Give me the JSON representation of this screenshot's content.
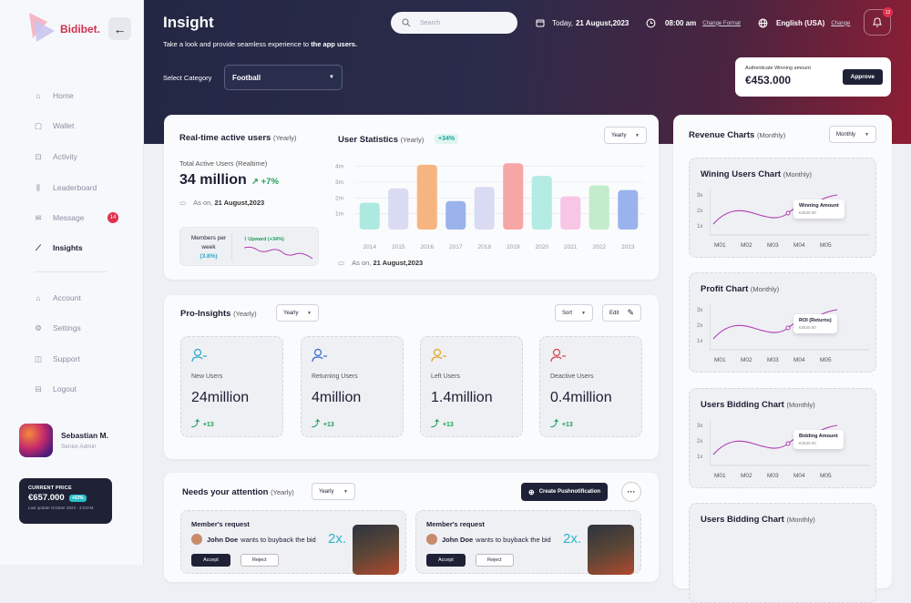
{
  "brand": {
    "name": "Bidibet."
  },
  "sidebar": {
    "items": [
      {
        "label": "Home",
        "icon": "home-icon"
      },
      {
        "label": "Wallet",
        "icon": "wallet-icon"
      },
      {
        "label": "Activity",
        "icon": "activity-icon"
      },
      {
        "label": "Leaderboard",
        "icon": "leaderboard-icon"
      },
      {
        "label": "Message",
        "icon": "message-icon",
        "badge": "14"
      },
      {
        "label": "Insights",
        "icon": "insights-icon",
        "active": true
      },
      {
        "label": "Account",
        "icon": "account-icon"
      },
      {
        "label": "Settings",
        "icon": "settings-icon"
      },
      {
        "label": "Support",
        "icon": "support-icon"
      },
      {
        "label": "Logout",
        "icon": "logout-icon"
      }
    ],
    "user": {
      "name": "Sebastian M.",
      "role": "Senior Admin"
    },
    "price": {
      "label": "CURRENT PRICE",
      "value": "€657.000",
      "change": "+02%",
      "updated": "Last update October 2023 - 3:23AM"
    }
  },
  "header": {
    "title": "Insight",
    "subtitle_pre": "Take a look and provide seamless experience to ",
    "subtitle_bold": "the app users.",
    "category_label": "Select Category",
    "category_value": "Football",
    "search_placeholder": "Search",
    "date_pre": "Today,",
    "date": "21 August,2023",
    "time": "08:00 am",
    "time_link": "Change Format",
    "language": "English (USA)",
    "language_link": "Change",
    "notifications": "12"
  },
  "auth": {
    "label": "Authenticate Winning amount",
    "value": "€453.000",
    "button": "Approve"
  },
  "realtime": {
    "title": "Real-time active users",
    "period": "(Yearly)",
    "total_label": "Total Active Users (Realtime)",
    "total_value": "34 million",
    "change": "+7%",
    "as_on_pre": "As on,",
    "as_on": "21 August,2023",
    "members_label": "Members per week",
    "members_pct": "(3.8%)",
    "trend": "Upward (+34%)"
  },
  "user_stats": {
    "title": "User Statistics",
    "period": "(Yearly)",
    "badge": "+34%",
    "select": "Yearly",
    "as_on_pre": "As on,",
    "as_on": "21 August,2023"
  },
  "chart_data": {
    "type": "bar",
    "categories": [
      "2014",
      "2015",
      "2016",
      "2017",
      "2018",
      "2019",
      "2020",
      "2021",
      "2022",
      "2023"
    ],
    "values": [
      1.7,
      2.6,
      4.1,
      1.8,
      2.7,
      4.2,
      3.4,
      2.1,
      2.8,
      2.5
    ],
    "colors": [
      "#aee9e1",
      "#d9dbf3",
      "#f6b580",
      "#9ab3ec",
      "#d9dbf3",
      "#f7a6a6",
      "#b4ebe5",
      "#f8c5e5",
      "#c2eccb",
      "#9ab3ec"
    ],
    "yticks": [
      "1m",
      "2m",
      "3m",
      "4m"
    ],
    "ylim": [
      0,
      4.5
    ]
  },
  "pro": {
    "title": "Pro-Insights",
    "period": "(Yearly)",
    "select": "Yearly",
    "sort": "Sort",
    "edit": "Edit",
    "stats": [
      {
        "label": "New Users",
        "value": "24million",
        "change": "+13",
        "icon": "users-icon",
        "color": "#2aa9c9"
      },
      {
        "label": "Returning Users",
        "value": "4million",
        "change": "+13",
        "icon": "user-check-icon",
        "color": "#3a66d6"
      },
      {
        "label": "Left Users",
        "value": "1.4million",
        "change": "+13",
        "icon": "user-minus-icon",
        "color": "#e2a522"
      },
      {
        "label": "Deactive Users",
        "value": "0.4million",
        "change": "+13",
        "icon": "user-x-icon",
        "color": "#d9434b"
      }
    ]
  },
  "attention": {
    "title": "Needs your attention",
    "period": "(Yearly)",
    "select": "Yearly",
    "push_button": "Create Pushnotification",
    "requests": [
      {
        "title": "Member's request",
        "name": "John Doe",
        "text": "wants to buyback the bid",
        "mult": "2x.",
        "accept": "Accept",
        "reject": "Reject"
      },
      {
        "title": "Member's request",
        "name": "John Doe",
        "text": "wants to buyback the bid",
        "mult": "2x.",
        "accept": "Accept",
        "reject": "Reject"
      }
    ]
  },
  "revenue": {
    "title": "Revenue Charts",
    "period": "(Monthly)",
    "select": "Monthly",
    "charts": [
      {
        "title": "Wining Users Chart",
        "period": "(Monthly)",
        "tip": "Winning Amount",
        "tip_val": "€4530.00"
      },
      {
        "title": "Profit Chart",
        "period": "(Monthly)",
        "tip": "ROI (Returns)",
        "tip_val": "€4530.00"
      },
      {
        "title": "Users Bidding Chart",
        "period": "(Monthly)",
        "tip": "Bidding Amount",
        "tip_val": "€4530.00"
      },
      {
        "title": "Users Bidding Chart",
        "period": "(Monthly)"
      }
    ],
    "months": [
      "M01",
      "M02",
      "M03",
      "M04",
      "M05"
    ],
    "yticks": [
      "3x",
      "2x",
      "1x"
    ]
  }
}
